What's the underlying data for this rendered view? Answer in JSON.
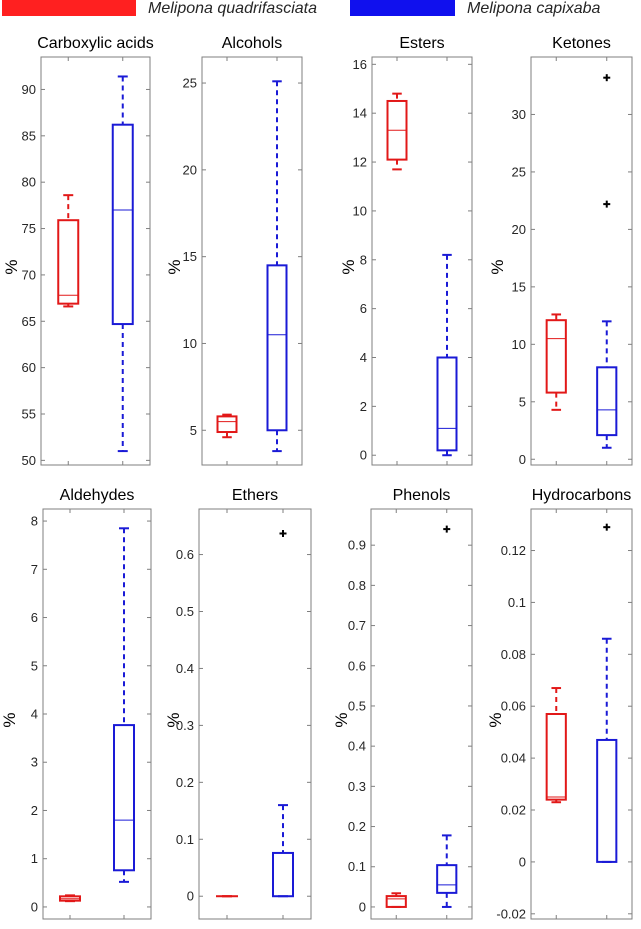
{
  "legend": [
    {
      "label": "Melipona quadrifasciata",
      "color": "#ff2020"
    },
    {
      "label": "Melipona capixaba",
      "color": "#1010ee"
    }
  ],
  "colors": {
    "quadrifasciata": "#e21818",
    "capixaba": "#1a1ad6",
    "axis": "#7f7f7f",
    "text": "#262626"
  },
  "chart_data": [
    {
      "type": "box",
      "title": "Carboxylic acids",
      "ylabel": "%",
      "ylim": [
        49.5,
        93.5
      ],
      "yticks": [
        50,
        55,
        60,
        65,
        70,
        75,
        80,
        85,
        90
      ],
      "series": [
        {
          "name": "Melipona quadrifasciata",
          "min": 66.6,
          "q1": 66.9,
          "median": 67.8,
          "q3": 75.9,
          "max": 78.6,
          "outliers": []
        },
        {
          "name": "Melipona capixaba",
          "min": 51.0,
          "q1": 64.7,
          "median": 77.0,
          "q3": 86.2,
          "max": 91.4,
          "outliers": []
        }
      ]
    },
    {
      "type": "box",
      "title": "Alcohols",
      "ylabel": "%",
      "ylim": [
        3.0,
        26.5
      ],
      "yticks": [
        5,
        10,
        15,
        20,
        25
      ],
      "series": [
        {
          "name": "Melipona quadrifasciata",
          "min": 4.6,
          "q1": 4.9,
          "median": 5.5,
          "q3": 5.8,
          "max": 5.9,
          "outliers": []
        },
        {
          "name": "Melipona capixaba",
          "min": 3.8,
          "q1": 5.0,
          "median": 10.5,
          "q3": 14.5,
          "max": 25.1,
          "outliers": []
        }
      ]
    },
    {
      "type": "box",
      "title": "Esters",
      "ylabel": "%",
      "ylim": [
        -0.4,
        16.3
      ],
      "yticks": [
        0,
        2,
        4,
        6,
        8,
        10,
        12,
        14,
        16
      ],
      "series": [
        {
          "name": "Melipona quadrifasciata",
          "min": 11.7,
          "q1": 12.1,
          "median": 13.3,
          "q3": 14.5,
          "max": 14.8,
          "outliers": []
        },
        {
          "name": "Melipona capixaba",
          "min": 0.0,
          "q1": 0.2,
          "median": 1.1,
          "q3": 4.0,
          "max": 8.2,
          "outliers": []
        }
      ]
    },
    {
      "type": "box",
      "title": "Ketones",
      "ylabel": "%",
      "ylim": [
        -0.5,
        35.0
      ],
      "yticks": [
        0,
        5,
        10,
        15,
        20,
        25,
        30
      ],
      "series": [
        {
          "name": "Melipona quadrifasciata",
          "min": 4.3,
          "q1": 5.8,
          "median": 10.5,
          "q3": 12.1,
          "max": 12.6,
          "outliers": []
        },
        {
          "name": "Melipona capixaba",
          "min": 1.0,
          "q1": 2.1,
          "median": 4.3,
          "q3": 8.0,
          "max": 12.0,
          "outliers": [
            22.2,
            33.2
          ]
        }
      ]
    },
    {
      "type": "box",
      "title": "Aldehydes",
      "ylabel": "%",
      "ylim": [
        -0.25,
        8.25
      ],
      "yticks": [
        0,
        1,
        2,
        3,
        4,
        5,
        6,
        7,
        8
      ],
      "series": [
        {
          "name": "Melipona quadrifasciata",
          "min": 0.12,
          "q1": 0.13,
          "median": 0.17,
          "q3": 0.22,
          "max": 0.24,
          "outliers": []
        },
        {
          "name": "Melipona capixaba",
          "min": 0.52,
          "q1": 0.76,
          "median": 1.8,
          "q3": 3.77,
          "max": 7.85,
          "outliers": []
        }
      ]
    },
    {
      "type": "box",
      "title": "Ethers",
      "ylabel": "%",
      "ylim": [
        -0.04,
        0.68
      ],
      "yticks": [
        0,
        0.1,
        0.2,
        0.3,
        0.4,
        0.5,
        0.6
      ],
      "series": [
        {
          "name": "Melipona quadrifasciata",
          "min": 0.0,
          "q1": 0.0,
          "median": 0.0,
          "q3": 0.0,
          "max": 0.0,
          "outliers": []
        },
        {
          "name": "Melipona capixaba",
          "min": 0.0,
          "q1": 0.0,
          "median": 0.0,
          "q3": 0.076,
          "max": 0.16,
          "outliers": [
            0.637
          ]
        }
      ]
    },
    {
      "type": "box",
      "title": "Phenols",
      "ylabel": "%",
      "ylim": [
        -0.03,
        0.99
      ],
      "yticks": [
        0,
        0.1,
        0.2,
        0.3,
        0.4,
        0.5,
        0.6,
        0.7,
        0.8,
        0.9
      ],
      "series": [
        {
          "name": "Melipona quadrifasciata",
          "min": 0.0,
          "q1": 0.0,
          "median": 0.02,
          "q3": 0.027,
          "max": 0.034,
          "outliers": []
        },
        {
          "name": "Melipona capixaba",
          "min": 0.0,
          "q1": 0.035,
          "median": 0.055,
          "q3": 0.104,
          "max": 0.178,
          "outliers": [
            0.94
          ]
        }
      ]
    },
    {
      "type": "box",
      "title": "Hydrocarbons",
      "ylabel": "%",
      "ylim": [
        -0.022,
        0.136
      ],
      "yticks": [
        -0.02,
        0,
        0.02,
        0.04,
        0.06,
        0.08,
        0.1,
        0.12
      ],
      "series": [
        {
          "name": "Melipona quadrifasciata",
          "min": 0.023,
          "q1": 0.024,
          "median": 0.025,
          "q3": 0.057,
          "max": 0.067,
          "outliers": []
        },
        {
          "name": "Melipona capixaba",
          "min": 0.0,
          "q1": 0.0,
          "median": 0.0,
          "q3": 0.047,
          "max": 0.086,
          "outliers": [
            0.129
          ]
        }
      ]
    }
  ]
}
